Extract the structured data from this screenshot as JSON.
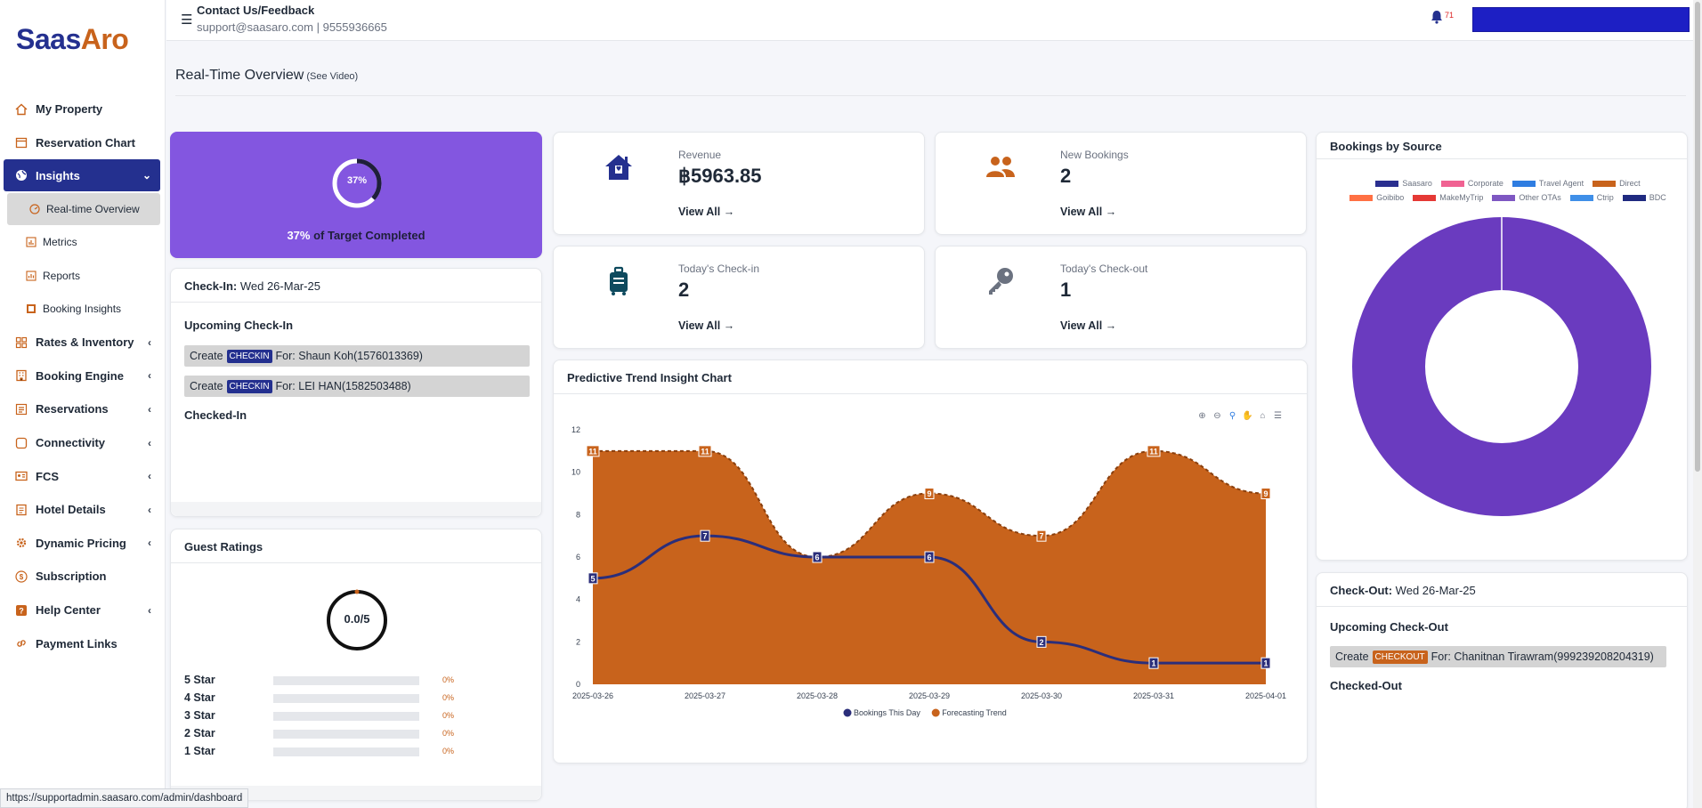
{
  "brand": {
    "part1": "Saas",
    "part2": "Aro"
  },
  "header": {
    "contact_title": "Contact Us/Feedback",
    "contact_email": "support@saasaro.com",
    "contact_sep": " | ",
    "contact_phone": "9555936665",
    "notification_count": "71"
  },
  "sidebar": {
    "items": [
      {
        "label": "My Property",
        "icon": "home-icon"
      },
      {
        "label": "Reservation Chart",
        "icon": "calendar-icon"
      },
      {
        "label": "Insights",
        "icon": "globe-icon",
        "active": true
      },
      {
        "label": "Rates & Inventory",
        "icon": "grid-icon"
      },
      {
        "label": "Booking Engine",
        "icon": "building-icon"
      },
      {
        "label": "Reservations",
        "icon": "list-icon"
      },
      {
        "label": "Connectivity",
        "icon": "square-icon"
      },
      {
        "label": "FCS",
        "icon": "id-card-icon"
      },
      {
        "label": "Hotel Details",
        "icon": "document-icon"
      },
      {
        "label": "Dynamic Pricing",
        "icon": "gear-icon"
      },
      {
        "label": "Subscription",
        "icon": "dollar-icon"
      },
      {
        "label": "Help Center",
        "icon": "question-icon"
      },
      {
        "label": "Payment Links",
        "icon": "link-icon"
      }
    ],
    "insights_sub": [
      {
        "label": "Real-time Overview"
      },
      {
        "label": "Metrics"
      },
      {
        "label": "Reports"
      },
      {
        "label": "Booking Insights"
      }
    ]
  },
  "page": {
    "title": "Real-Time Overview",
    "see_video": "(See Video)"
  },
  "target": {
    "percent": "37%",
    "percent_value": 37,
    "text_suffix": " of Target Completed"
  },
  "checkin": {
    "head_label": "Check-In:",
    "head_date": " Wed 26-Mar-25",
    "upcoming_title": "Upcoming Check-In",
    "rows": [
      {
        "prefix": "Create",
        "badge": "CHECKIN",
        "text": "For: Shaun Koh(1576013369)"
      },
      {
        "prefix": "Create",
        "badge": "CHECKIN",
        "text": "For: LEI HAN(1582503488)"
      }
    ],
    "checked_title": "Checked-In"
  },
  "ratings": {
    "title": "Guest Ratings",
    "score": "0.0/5",
    "rows": [
      {
        "label": "5 Star",
        "pct": "0%",
        "value": 0
      },
      {
        "label": "4 Star",
        "pct": "0%",
        "value": 0
      },
      {
        "label": "3 Star",
        "pct": "0%",
        "value": 0
      },
      {
        "label": "2 Star",
        "pct": "0%",
        "value": 0
      },
      {
        "label": "1 Star",
        "pct": "0%",
        "value": 0
      }
    ]
  },
  "kpis": {
    "revenue": {
      "label": "Revenue",
      "value": "฿5963.85",
      "link": "View All →"
    },
    "new_bookings": {
      "label": "New Bookings",
      "value": "2",
      "link": "View All →"
    },
    "checkin_today": {
      "label": "Today's Check-in",
      "value": "2",
      "link": "View All →"
    },
    "checkout_today": {
      "label": "Today's Check-out",
      "value": "1",
      "link": "View All →"
    }
  },
  "colors": {
    "brand_navy": "#24308f",
    "brand_orange": "#c8631c",
    "target_purple": "#8356e0",
    "donut_purple": "#6a3bbf"
  },
  "chart_data": [
    {
      "type": "area",
      "title": "Predictive Trend Insight Chart",
      "categories": [
        "2025-03-26",
        "2025-03-27",
        "2025-03-28",
        "2025-03-29",
        "2025-03-30",
        "2025-03-31",
        "2025-04-01"
      ],
      "ylim": [
        0,
        12
      ],
      "yticks": [
        0,
        2,
        4,
        6,
        8,
        10,
        12
      ],
      "series": [
        {
          "name": "Bookings This Day",
          "type": "line",
          "color": "#2b2e7a",
          "values": [
            5,
            7,
            6,
            6,
            2,
            1,
            1
          ]
        },
        {
          "name": "Forecasting Trend",
          "type": "area",
          "color": "#c8631c",
          "values": [
            11,
            11,
            6,
            9,
            7,
            11,
            9
          ]
        }
      ],
      "legend": "bottom"
    },
    {
      "type": "pie",
      "donut": true,
      "title": "Bookings by Source",
      "labels": [
        "Saasaro",
        "Corporate",
        "Travel Agent",
        "Direct",
        "Goibibo",
        "MakeMyTrip",
        "Other OTAs",
        "Ctrip",
        "BDC"
      ],
      "colors": [
        "#2a2f8f",
        "#f06292",
        "#2f7de1",
        "#c8631c",
        "#ff7043",
        "#e53935",
        "#7e57c2",
        "#3f8fe8",
        "#1f2a80"
      ],
      "values": [
        0,
        0,
        0,
        0,
        0,
        0,
        100,
        0,
        0
      ],
      "legend": "top"
    }
  ],
  "checkout": {
    "head_label": "Check-Out:",
    "head_date": " Wed 26-Mar-25",
    "upcoming_title": "Upcoming Check-Out",
    "rows": [
      {
        "prefix": "Create",
        "badge": "CHECKOUT",
        "text": "For: Chanitnan Tirawram(999239208204319)"
      }
    ],
    "checked_title": "Checked-Out"
  },
  "statusbar": {
    "url": "https://supportadmin.saasaro.com/admin/dashboard"
  }
}
